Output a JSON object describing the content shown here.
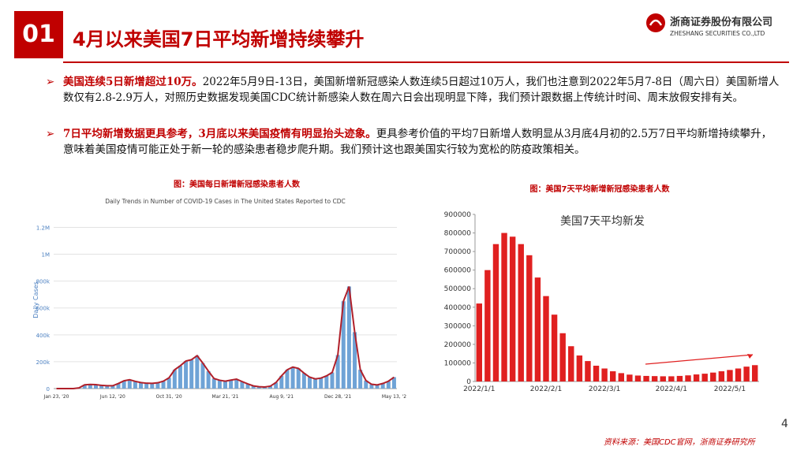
{
  "header": {
    "number": "01",
    "title": "4月以来美国7日平均新增持续攀升"
  },
  "logo": {
    "name": "浙商证券股份有限公司",
    "english": "ZHESHANG SECURITIES CO.,LTD"
  },
  "bullets": [
    {
      "bold": "美国连续5日新增超过10万。",
      "text": "2022年5月9日-13日，美国新增新冠感染人数连续5日超过10万人，我们也注意到2022年5月7-8日（周六日）美国新增人数仅有2.8-2.9万人，对照历史数据发现美国CDC统计新感染人数在周六日会出现明显下降，我们预计跟数据上传统计时间、周末放假安排有关。"
    },
    {
      "bold": "7日平均新增数据更具参考，3月底以来美国疫情有明显抬头迹象。",
      "text": "更具参考价值的平均7日新增人数明显从3月底4月初的2.5万7日平均新增持续攀升，意味着美国疫情可能正处于新一轮的感染患者稳步爬升期。我们预计这也跟美国实行较为宽松的防疫政策相关。"
    }
  ],
  "chart_data": [
    {
      "type": "bar",
      "caption": "图：美国每日新增新冠感染患者人数",
      "title": "Daily Trends in Number of COVID-19 Cases in The United States Reported to CDC",
      "y_label": "Daily Cases",
      "categories": [
        "Jan 23, '20",
        null,
        null,
        null,
        null,
        null,
        null,
        null,
        null,
        null,
        "Jun 12, '20",
        null,
        null,
        null,
        null,
        null,
        null,
        null,
        null,
        null,
        "Oct 31, '20",
        null,
        null,
        null,
        null,
        null,
        null,
        null,
        null,
        null,
        "Mar 21, '21",
        null,
        null,
        null,
        null,
        null,
        null,
        null,
        null,
        null,
        "Aug 9, '21",
        null,
        null,
        null,
        null,
        null,
        null,
        null,
        null,
        null,
        "Dec 28, '21",
        null,
        null,
        null,
        null,
        null,
        null,
        null,
        null,
        null,
        "May 13, '2"
      ],
      "series": [
        {
          "color": "#6fa3d6",
          "line_color": "#b0202a",
          "values": [
            0,
            0,
            0,
            200,
            5000,
            28000,
            31000,
            29000,
            24000,
            21000,
            21000,
            38000,
            58000,
            66000,
            54000,
            45000,
            40000,
            39000,
            43000,
            55000,
            80000,
            140000,
            170000,
            205000,
            215000,
            245000,
            190000,
            130000,
            75000,
            62000,
            55000,
            63000,
            70000,
            52000,
            35000,
            20000,
            14000,
            12000,
            18000,
            45000,
            95000,
            140000,
            160000,
            150000,
            115000,
            85000,
            72000,
            78000,
            95000,
            120000,
            250000,
            650000,
            760000,
            420000,
            140000,
            60000,
            32000,
            27000,
            38000,
            55000,
            85000
          ]
        }
      ],
      "ylim": [
        0,
        1320000
      ],
      "yticks": [
        {
          "value": 0,
          "label": "0"
        },
        {
          "value": 200000,
          "label": "200k"
        },
        {
          "value": 400000,
          "label": "400k"
        },
        {
          "value": 600000,
          "label": "600k"
        },
        {
          "value": 800000,
          "label": "800k"
        },
        {
          "value": 1000000,
          "label": "1M"
        },
        {
          "value": 1200000,
          "label": "1.2M"
        }
      ],
      "grid": true
    },
    {
      "type": "bar",
      "caption": "图：美国7天平均新增新冠感染患者人数",
      "annotation": "美国7天平均新发",
      "categories": [
        "2022/1/1",
        null,
        null,
        null,
        null,
        null,
        null,
        null,
        "2022/2/1",
        null,
        null,
        null,
        null,
        null,
        null,
        "2022/3/1",
        null,
        null,
        null,
        null,
        null,
        null,
        null,
        "2022/4/1",
        null,
        null,
        null,
        null,
        null,
        null,
        "2022/5/1",
        null,
        null,
        null
      ],
      "series": [
        {
          "color": "#e02020",
          "values": [
            420000,
            600000,
            740000,
            800000,
            780000,
            740000,
            680000,
            560000,
            460000,
            360000,
            260000,
            190000,
            140000,
            110000,
            85000,
            70000,
            55000,
            45000,
            37000,
            32000,
            30000,
            29000,
            28000,
            28000,
            30000,
            33000,
            38000,
            42000,
            48000,
            55000,
            62000,
            70000,
            80000,
            88000
          ]
        }
      ],
      "ylim": [
        0,
        900000
      ],
      "yticks": [
        0,
        100000,
        200000,
        300000,
        400000,
        500000,
        600000,
        700000,
        800000,
        900000
      ],
      "grid": false
    }
  ],
  "footer": {
    "page": "4",
    "source": "资料来源：美国CDC官网，浙商证券研究所"
  }
}
